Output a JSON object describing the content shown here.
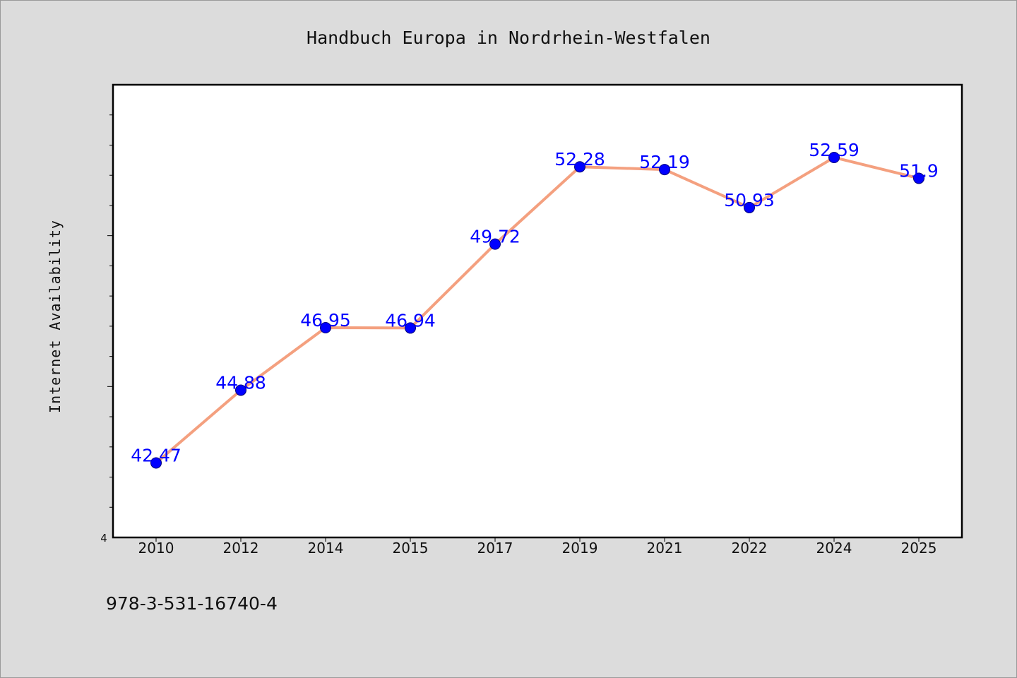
{
  "chart_data": {
    "type": "line",
    "title": "Handbuch Europa in Nordrhein-Westfalen",
    "xlabel": "",
    "ylabel": "Internet Availability",
    "categories": [
      "2010",
      "2012",
      "2014",
      "2015",
      "2017",
      "2019",
      "2021",
      "2022",
      "2024",
      "2025"
    ],
    "series": [
      {
        "values": [
          42.47,
          44.88,
          46.95,
          46.94,
          49.72,
          52.28,
          52.19,
          50.93,
          52.59,
          51.9
        ],
        "labels": [
          "42.47",
          "44.88",
          "46.95",
          "46.94",
          "49.72",
          "52.28",
          "52.19",
          "50.93",
          "52.59",
          "51.9"
        ]
      }
    ],
    "ylim": [
      40,
      55
    ],
    "y_tick_labels": [
      "4"
    ],
    "grid": false,
    "legend": "none",
    "colors": {
      "line": "#f4a07f",
      "marker": "#0000ff",
      "label": "#0000ff",
      "plot_background": "#ffffff",
      "figure_background": "#dcdcdc"
    }
  },
  "footer": {
    "isbn": "978-3-531-16740-4"
  }
}
